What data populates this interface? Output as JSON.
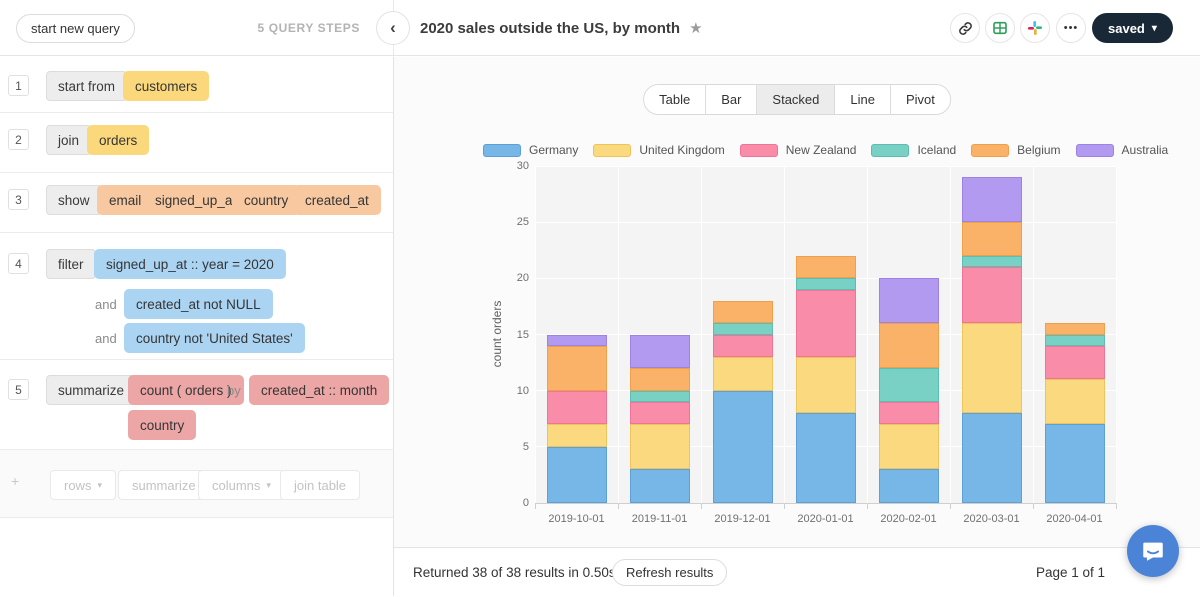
{
  "topbar": {
    "start_new_query": "start new query",
    "steps_count": "5 QUERY STEPS",
    "back_glyph": "‹",
    "title": "2020 sales outside the US, by month",
    "icons": [
      "link-icon",
      "sheets-icon",
      "slack-icon",
      "more-icon"
    ],
    "more_glyph": "•••",
    "saved_label": "saved"
  },
  "sidebar": {
    "steps": [
      {
        "num": "1",
        "verb": "start from",
        "table": "customers"
      },
      {
        "num": "2",
        "verb": "join",
        "table": "orders"
      },
      {
        "num": "3",
        "verb": "show",
        "fields": [
          "email",
          "signed_up_at",
          "country",
          "created_at"
        ]
      },
      {
        "num": "4",
        "verb": "filter",
        "connector": "and",
        "conditions": [
          "signed_up_at :: year = 2020",
          "created_at not NULL",
          "country not 'United States'"
        ]
      },
      {
        "num": "5",
        "verb": "summarize",
        "metric": "count ( orders )",
        "by_label": "by",
        "groups": [
          "created_at :: month",
          "country"
        ]
      }
    ],
    "ghost": {
      "plus": "+",
      "buttons": [
        {
          "label": "rows",
          "caret": true
        },
        {
          "label": "summarize",
          "caret": false
        },
        {
          "label": "columns",
          "caret": true
        },
        {
          "label": "join table",
          "caret": false
        }
      ]
    }
  },
  "tabs": {
    "items": [
      "Table",
      "Bar",
      "Stacked",
      "Line",
      "Pivot"
    ],
    "active": "Stacked"
  },
  "chart_data": {
    "type": "bar",
    "stacked": true,
    "title": "",
    "xlabel": "",
    "ylabel": "count orders",
    "ylim": [
      0,
      30
    ],
    "yticks": [
      0,
      5,
      10,
      15,
      20,
      25,
      30
    ],
    "grid": true,
    "legend_position": "top",
    "categories": [
      "2019-10-01",
      "2019-11-01",
      "2019-12-01",
      "2020-01-01",
      "2020-02-01",
      "2020-03-01",
      "2020-04-01"
    ],
    "series": [
      {
        "name": "Germany",
        "color": "#76b7e8",
        "border": "#5f9fd8",
        "values": [
          5,
          3,
          10,
          8,
          3,
          8,
          7
        ]
      },
      {
        "name": "United Kingdom",
        "color": "#fbd97e",
        "border": "#ecc45c",
        "values": [
          2,
          4,
          3,
          5,
          4,
          8,
          4
        ]
      },
      {
        "name": "New Zealand",
        "color": "#f98ca9",
        "border": "#ef7496",
        "values": [
          3,
          2,
          2,
          6,
          2,
          5,
          3
        ]
      },
      {
        "name": "Iceland",
        "color": "#79d0c4",
        "border": "#5cbdb0",
        "values": [
          0,
          1,
          1,
          1,
          3,
          1,
          1
        ]
      },
      {
        "name": "Belgium",
        "color": "#f9b267",
        "border": "#efa04c",
        "values": [
          4,
          2,
          2,
          2,
          4,
          3,
          1
        ]
      },
      {
        "name": "Australia",
        "color": "#b29af0",
        "border": "#9e82e3",
        "values": [
          1,
          3,
          0,
          0,
          4,
          4,
          0
        ]
      }
    ]
  },
  "statusbar": {
    "results": "Returned 38 of 38 results in 0.50s",
    "refresh_label": "Refresh results",
    "page": "Page 1 of 1"
  }
}
